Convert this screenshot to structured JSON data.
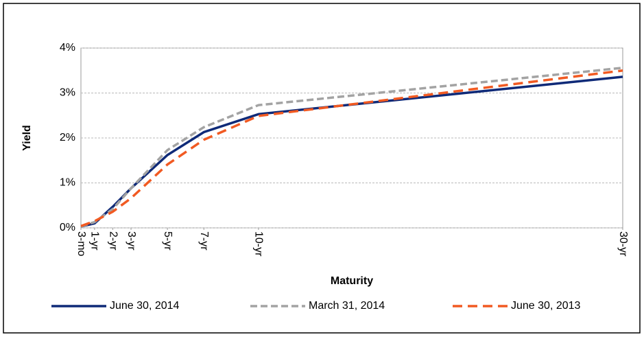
{
  "chart_data": {
    "type": "line",
    "x_label": "Maturity",
    "y_label": "Yield",
    "x": [
      0.25,
      1,
      2,
      3,
      5,
      7,
      10,
      30
    ],
    "xlim": [
      0.25,
      30
    ],
    "xticks": [
      {
        "value": 0.25,
        "label": "3-mo"
      },
      {
        "value": 1,
        "label": "1-yr"
      },
      {
        "value": 2,
        "label": "2-yr"
      },
      {
        "value": 3,
        "label": "3-yr"
      },
      {
        "value": 5,
        "label": "5-yr"
      },
      {
        "value": 7,
        "label": "7-yr"
      },
      {
        "value": 10,
        "label": "10-yr"
      },
      {
        "value": 30,
        "label": "30-yr"
      }
    ],
    "ylim": [
      0,
      4
    ],
    "yticks": [
      {
        "value": 0,
        "label": "0%"
      },
      {
        "value": 1,
        "label": "1%"
      },
      {
        "value": 2,
        "label": "2%"
      },
      {
        "value": 3,
        "label": "3%"
      },
      {
        "value": 4,
        "label": "4%"
      }
    ],
    "grid": true,
    "legend": "bottom",
    "series": [
      {
        "name": "June 30, 2014",
        "color": "#0f2a78",
        "dash": "solid",
        "values": [
          0.03,
          0.1,
          0.47,
          0.88,
          1.62,
          2.13,
          2.53,
          3.36
        ]
      },
      {
        "name": "March 31, 2014",
        "color": "#a3a3a3",
        "dash": "dashed",
        "values": [
          0.03,
          0.13,
          0.42,
          0.88,
          1.73,
          2.24,
          2.73,
          3.56
        ]
      },
      {
        "name": "June 30, 2013",
        "color": "#f15a22",
        "dash": "dashed",
        "values": [
          0.04,
          0.15,
          0.36,
          0.66,
          1.41,
          1.96,
          2.49,
          3.5
        ]
      }
    ]
  }
}
